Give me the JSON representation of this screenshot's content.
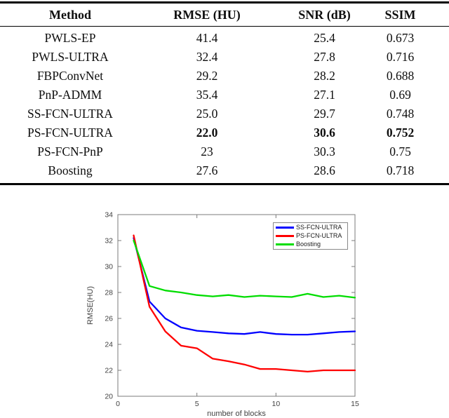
{
  "table": {
    "columns": [
      "Method",
      "RMSE (HU)",
      "SNR (dB)",
      "SSIM"
    ],
    "rows": [
      {
        "method": "PWLS-EP",
        "rmse": "41.4",
        "snr": "25.4",
        "ssim": "0.673",
        "bold_values": false
      },
      {
        "method": "PWLS-ULTRA",
        "rmse": "32.4",
        "snr": "27.8",
        "ssim": "0.716",
        "bold_values": false
      },
      {
        "method": "FBPConvNet",
        "rmse": "29.2",
        "snr": "28.2",
        "ssim": "0.688",
        "bold_values": false
      },
      {
        "method": "PnP-ADMM",
        "rmse": "35.4",
        "snr": "27.1",
        "ssim": "0.69",
        "bold_values": false
      },
      {
        "method": "SS-FCN-ULTRA",
        "rmse": "25.0",
        "snr": "29.7",
        "ssim": "0.748",
        "bold_values": false
      },
      {
        "method": "PS-FCN-ULTRA",
        "rmse": "22.0",
        "snr": "30.6",
        "ssim": "0.752",
        "bold_values": true
      },
      {
        "method": "PS-FCN-PnP",
        "rmse": "23",
        "snr": "30.3",
        "ssim": "0.75",
        "bold_values": false
      },
      {
        "method": "Boosting",
        "rmse": "27.6",
        "snr": "28.6",
        "ssim": "0.718",
        "bold_values": false
      }
    ]
  },
  "chart_data": {
    "type": "line",
    "title": "",
    "xlabel": "number of blocks",
    "ylabel": "RMSE(HU)",
    "xlim": [
      0,
      15
    ],
    "ylim": [
      20,
      34
    ],
    "x_ticks": [
      0,
      5,
      10,
      15
    ],
    "y_ticks": [
      20,
      22,
      24,
      26,
      28,
      30,
      32,
      34
    ],
    "grid": false,
    "legend_position": "top-right",
    "x": [
      1,
      2,
      3,
      4,
      5,
      6,
      7,
      8,
      9,
      10,
      11,
      12,
      13,
      14,
      15
    ],
    "series": [
      {
        "name": "SS-FCN-ULTRA",
        "color": "#0000ff",
        "values": [
          32.2,
          27.3,
          26.0,
          25.3,
          25.05,
          24.95,
          24.85,
          24.8,
          24.95,
          24.8,
          24.75,
          24.75,
          24.85,
          24.95,
          25.0
        ]
      },
      {
        "name": "PS-FCN-ULTRA",
        "color": "#ff0000",
        "values": [
          32.4,
          26.9,
          25.0,
          23.9,
          23.7,
          22.9,
          22.7,
          22.45,
          22.1,
          22.1,
          22.0,
          21.9,
          22.0,
          22.0,
          22.0
        ]
      },
      {
        "name": "Boosting",
        "color": "#00dd00",
        "values": [
          32.0,
          28.5,
          28.15,
          28.0,
          27.8,
          27.7,
          27.8,
          27.65,
          27.75,
          27.7,
          27.65,
          27.9,
          27.65,
          27.75,
          27.6
        ]
      }
    ],
    "axis_color": "#7b7b7b",
    "label_color": "#424242"
  }
}
